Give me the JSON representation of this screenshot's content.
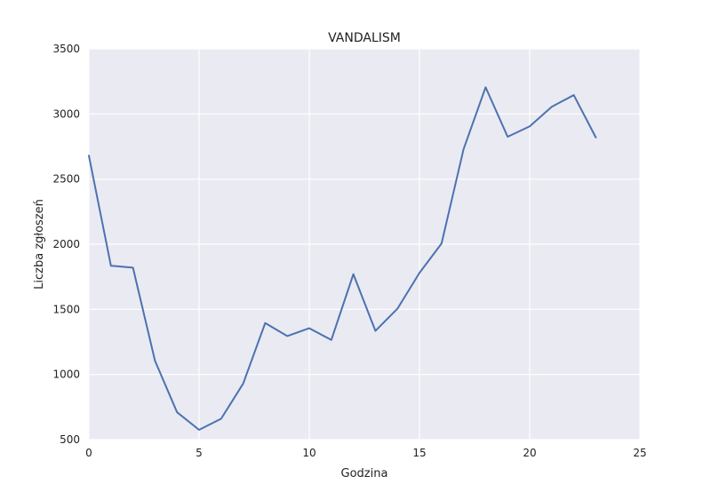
{
  "chart_data": {
    "type": "line",
    "title": "VANDALISM",
    "xlabel": "Godzina",
    "ylabel": "Liczba zgłoszeń",
    "xlim": [
      0,
      25
    ],
    "ylim": [
      500,
      3500
    ],
    "xticks": [
      0,
      5,
      10,
      15,
      20,
      25
    ],
    "yticks": [
      500,
      1000,
      1500,
      2000,
      2500,
      3000,
      3500
    ],
    "grid": true,
    "background_color": "#eaeaf2",
    "grid_color": "#ffffff",
    "line_color": "#4c72b0",
    "series": [
      {
        "x": [
          0,
          1,
          2,
          3,
          4,
          5,
          6,
          7,
          8,
          9,
          10,
          11,
          12,
          13,
          14,
          15,
          16,
          17,
          18,
          19,
          20,
          21,
          22,
          23
        ],
        "values": [
          2680,
          1835,
          1820,
          1105,
          710,
          575,
          660,
          930,
          1395,
          1295,
          1355,
          1265,
          1770,
          1335,
          1505,
          1780,
          2005,
          2730,
          3205,
          2825,
          2905,
          3055,
          3145,
          2820
        ]
      }
    ]
  }
}
